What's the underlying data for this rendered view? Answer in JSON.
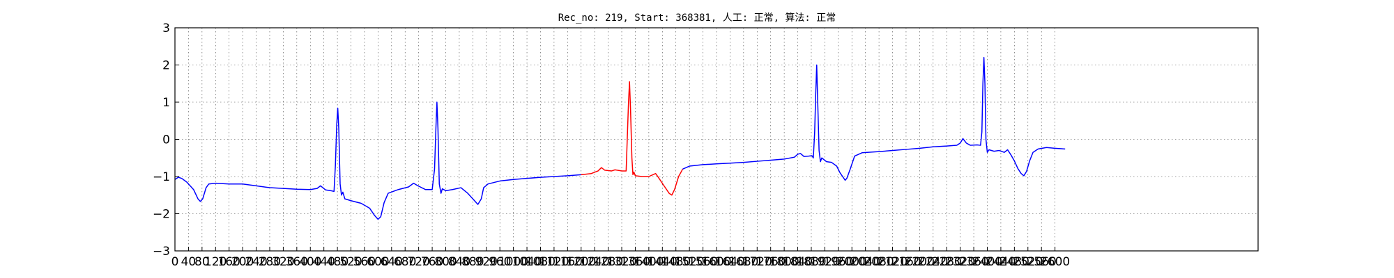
{
  "chart_data": {
    "type": "line",
    "title": "Rec_no: 219, Start: 368381, 人工: 正常, 算法: 正常",
    "xlim": [
      0,
      3200
    ],
    "ylim": [
      -3,
      3
    ],
    "grid": true,
    "x_ticks": [
      0,
      40,
      80,
      120,
      160,
      200,
      240,
      280,
      320,
      360,
      400,
      440,
      480,
      520,
      560,
      600,
      640,
      680,
      720,
      760,
      800,
      840,
      880,
      920,
      960,
      1000,
      1040,
      1080,
      1120,
      1160,
      1200,
      1240,
      1280,
      1320,
      1360,
      1400,
      1440,
      1480,
      1520,
      1560,
      1600,
      1640,
      1680,
      1720,
      1760,
      1800,
      1840,
      1880,
      1920,
      1960,
      2000,
      2040,
      2080,
      2120,
      2160,
      2200,
      2240,
      2280,
      2320,
      2360,
      2400,
      2440,
      2480,
      2520,
      2560,
      2600
    ],
    "y_ticks": [
      -3,
      -2,
      -1,
      0,
      1,
      2,
      3
    ],
    "y_tick_labels": [
      "−3",
      "−2",
      "−1",
      "0",
      "1",
      "2",
      "3"
    ],
    "series": [
      {
        "color": "#0000ff",
        "points": [
          [
            0,
            -1.08
          ],
          [
            10,
            -1.02
          ],
          [
            20,
            -1.05
          ],
          [
            35,
            -1.15
          ],
          [
            55,
            -1.35
          ],
          [
            68,
            -1.6
          ],
          [
            75,
            -1.67
          ],
          [
            82,
            -1.6
          ],
          [
            92,
            -1.3
          ],
          [
            100,
            -1.2
          ],
          [
            120,
            -1.18
          ],
          [
            160,
            -1.2
          ],
          [
            200,
            -1.2
          ],
          [
            240,
            -1.25
          ],
          [
            280,
            -1.3
          ],
          [
            320,
            -1.32
          ],
          [
            360,
            -1.34
          ],
          [
            400,
            -1.35
          ],
          [
            420,
            -1.32
          ],
          [
            430,
            -1.25
          ],
          [
            437,
            -1.3
          ],
          [
            445,
            -1.36
          ],
          [
            460,
            -1.38
          ],
          [
            470,
            -1.4
          ],
          [
            474,
            -0.7
          ],
          [
            478,
            0.4
          ],
          [
            481,
            0.84
          ],
          [
            484,
            0.3
          ],
          [
            488,
            -1.2
          ],
          [
            492,
            -1.5
          ],
          [
            496,
            -1.42
          ],
          [
            502,
            -1.6
          ],
          [
            520,
            -1.65
          ],
          [
            550,
            -1.72
          ],
          [
            575,
            -1.85
          ],
          [
            590,
            -2.05
          ],
          [
            600,
            -2.15
          ],
          [
            608,
            -2.08
          ],
          [
            618,
            -1.7
          ],
          [
            630,
            -1.45
          ],
          [
            660,
            -1.35
          ],
          [
            690,
            -1.28
          ],
          [
            705,
            -1.18
          ],
          [
            718,
            -1.25
          ],
          [
            740,
            -1.35
          ],
          [
            760,
            -1.35
          ],
          [
            767,
            -0.8
          ],
          [
            771,
            0.3
          ],
          [
            774,
            1.0
          ],
          [
            777,
            0.3
          ],
          [
            781,
            -1.2
          ],
          [
            786,
            -1.45
          ],
          [
            790,
            -1.33
          ],
          [
            800,
            -1.38
          ],
          [
            820,
            -1.35
          ],
          [
            845,
            -1.3
          ],
          [
            865,
            -1.45
          ],
          [
            885,
            -1.65
          ],
          [
            895,
            -1.75
          ],
          [
            905,
            -1.6
          ],
          [
            912,
            -1.3
          ],
          [
            925,
            -1.2
          ],
          [
            960,
            -1.12
          ],
          [
            1000,
            -1.08
          ],
          [
            1040,
            -1.05
          ],
          [
            1080,
            -1.02
          ],
          [
            1120,
            -1.0
          ],
          [
            1160,
            -0.98
          ],
          [
            1200,
            -0.95
          ]
        ]
      },
      {
        "color": "#ff0000",
        "points": [
          [
            1200,
            -0.95
          ],
          [
            1230,
            -0.92
          ],
          [
            1250,
            -0.85
          ],
          [
            1260,
            -0.76
          ],
          [
            1270,
            -0.83
          ],
          [
            1290,
            -0.85
          ],
          [
            1300,
            -0.82
          ],
          [
            1320,
            -0.85
          ],
          [
            1333,
            -0.85
          ],
          [
            1337,
            0.2
          ],
          [
            1340,
            1.0
          ],
          [
            1343,
            1.55
          ],
          [
            1346,
            0.8
          ],
          [
            1350,
            -0.5
          ],
          [
            1353,
            -0.95
          ],
          [
            1356,
            -0.88
          ],
          [
            1360,
            -0.98
          ],
          [
            1380,
            -1.0
          ],
          [
            1400,
            -1.0
          ],
          [
            1420,
            -0.92
          ],
          [
            1428,
            -1.02
          ],
          [
            1445,
            -1.25
          ],
          [
            1460,
            -1.45
          ],
          [
            1468,
            -1.5
          ],
          [
            1476,
            -1.35
          ],
          [
            1488,
            -1.0
          ],
          [
            1500,
            -0.8
          ]
        ]
      },
      {
        "color": "#0000ff",
        "points": [
          [
            1500,
            -0.8
          ],
          [
            1520,
            -0.72
          ],
          [
            1560,
            -0.68
          ],
          [
            1600,
            -0.66
          ],
          [
            1640,
            -0.64
          ],
          [
            1680,
            -0.62
          ],
          [
            1720,
            -0.59
          ],
          [
            1760,
            -0.56
          ],
          [
            1800,
            -0.53
          ],
          [
            1830,
            -0.48
          ],
          [
            1840,
            -0.4
          ],
          [
            1848,
            -0.38
          ],
          [
            1858,
            -0.46
          ],
          [
            1872,
            -0.45
          ],
          [
            1882,
            -0.44
          ],
          [
            1886,
            -0.5
          ],
          [
            1890,
            0.2
          ],
          [
            1893,
            1.2
          ],
          [
            1896,
            2.0
          ],
          [
            1899,
            1.0
          ],
          [
            1903,
            -0.3
          ],
          [
            1907,
            -0.6
          ],
          [
            1911,
            -0.5
          ],
          [
            1925,
            -0.6
          ],
          [
            1940,
            -0.62
          ],
          [
            1955,
            -0.72
          ],
          [
            1965,
            -0.9
          ],
          [
            1980,
            -1.1
          ],
          [
            1985,
            -1.05
          ],
          [
            1995,
            -0.8
          ],
          [
            2008,
            -0.45
          ],
          [
            2030,
            -0.36
          ],
          [
            2080,
            -0.33
          ],
          [
            2120,
            -0.3
          ],
          [
            2160,
            -0.27
          ],
          [
            2200,
            -0.24
          ],
          [
            2240,
            -0.2
          ],
          [
            2280,
            -0.18
          ],
          [
            2310,
            -0.16
          ],
          [
            2320,
            -0.1
          ],
          [
            2328,
            0.02
          ],
          [
            2338,
            -0.1
          ],
          [
            2350,
            -0.16
          ],
          [
            2370,
            -0.15
          ],
          [
            2380,
            -0.16
          ],
          [
            2384,
            0.2
          ],
          [
            2387,
            1.5
          ],
          [
            2390,
            2.2
          ],
          [
            2393,
            1.5
          ],
          [
            2396,
            0.0
          ],
          [
            2400,
            -0.35
          ],
          [
            2405,
            -0.28
          ],
          [
            2420,
            -0.32
          ],
          [
            2435,
            -0.3
          ],
          [
            2450,
            -0.35
          ],
          [
            2460,
            -0.28
          ],
          [
            2470,
            -0.42
          ],
          [
            2480,
            -0.58
          ],
          [
            2490,
            -0.78
          ],
          [
            2500,
            -0.92
          ],
          [
            2508,
            -0.98
          ],
          [
            2516,
            -0.86
          ],
          [
            2525,
            -0.58
          ],
          [
            2535,
            -0.35
          ],
          [
            2550,
            -0.26
          ],
          [
            2575,
            -0.22
          ],
          [
            2600,
            -0.24
          ],
          [
            2630,
            -0.26
          ]
        ]
      }
    ]
  }
}
